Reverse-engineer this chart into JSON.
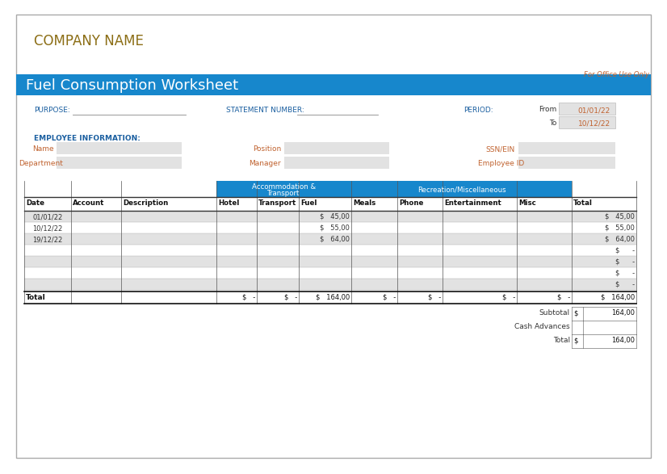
{
  "company_name": "COMPANY NAME",
  "title": "Fuel Consumption Worksheet",
  "for_office": "For Office Use Only",
  "title_bg": "#1787CC",
  "title_fg": "#FFFFFF",
  "company_color": "#8B6D14",
  "orange_color": "#C0622F",
  "dark_blue": "#1B5FA0",
  "header_bg": "#1787CC",
  "header_fg": "#FFFFFF",
  "light_gray": "#E2E2E2",
  "period_from": "01/01/22",
  "period_to": "10/12/22",
  "col_headers": [
    "Date",
    "Account",
    "Description",
    "Hotel",
    "Transport",
    "Fuel",
    "Meals",
    "Phone",
    "Entertainment",
    "Misc",
    "Total"
  ],
  "data_rows": [
    [
      "01/01/22",
      "",
      "",
      "",
      "",
      "45,00",
      "",
      "",
      "",
      "",
      "45,00"
    ],
    [
      "10/12/22",
      "",
      "",
      "",
      "",
      "55,00",
      "",
      "",
      "",
      "",
      "55,00"
    ],
    [
      "19/12/22",
      "",
      "",
      "",
      "",
      "64,00",
      "",
      "",
      "",
      "",
      "64,00"
    ],
    [
      "",
      "",
      "",
      "",
      "",
      "",
      "",
      "",
      "",
      "",
      ""
    ],
    [
      "",
      "",
      "",
      "",
      "",
      "",
      "",
      "",
      "",
      "",
      ""
    ],
    [
      "",
      "",
      "",
      "",
      "",
      "",
      "",
      "",
      "",
      "",
      ""
    ],
    [
      "",
      "",
      "",
      "",
      "",
      "",
      "",
      "",
      "",
      "",
      ""
    ]
  ],
  "bg_color": "#FFFFFF"
}
